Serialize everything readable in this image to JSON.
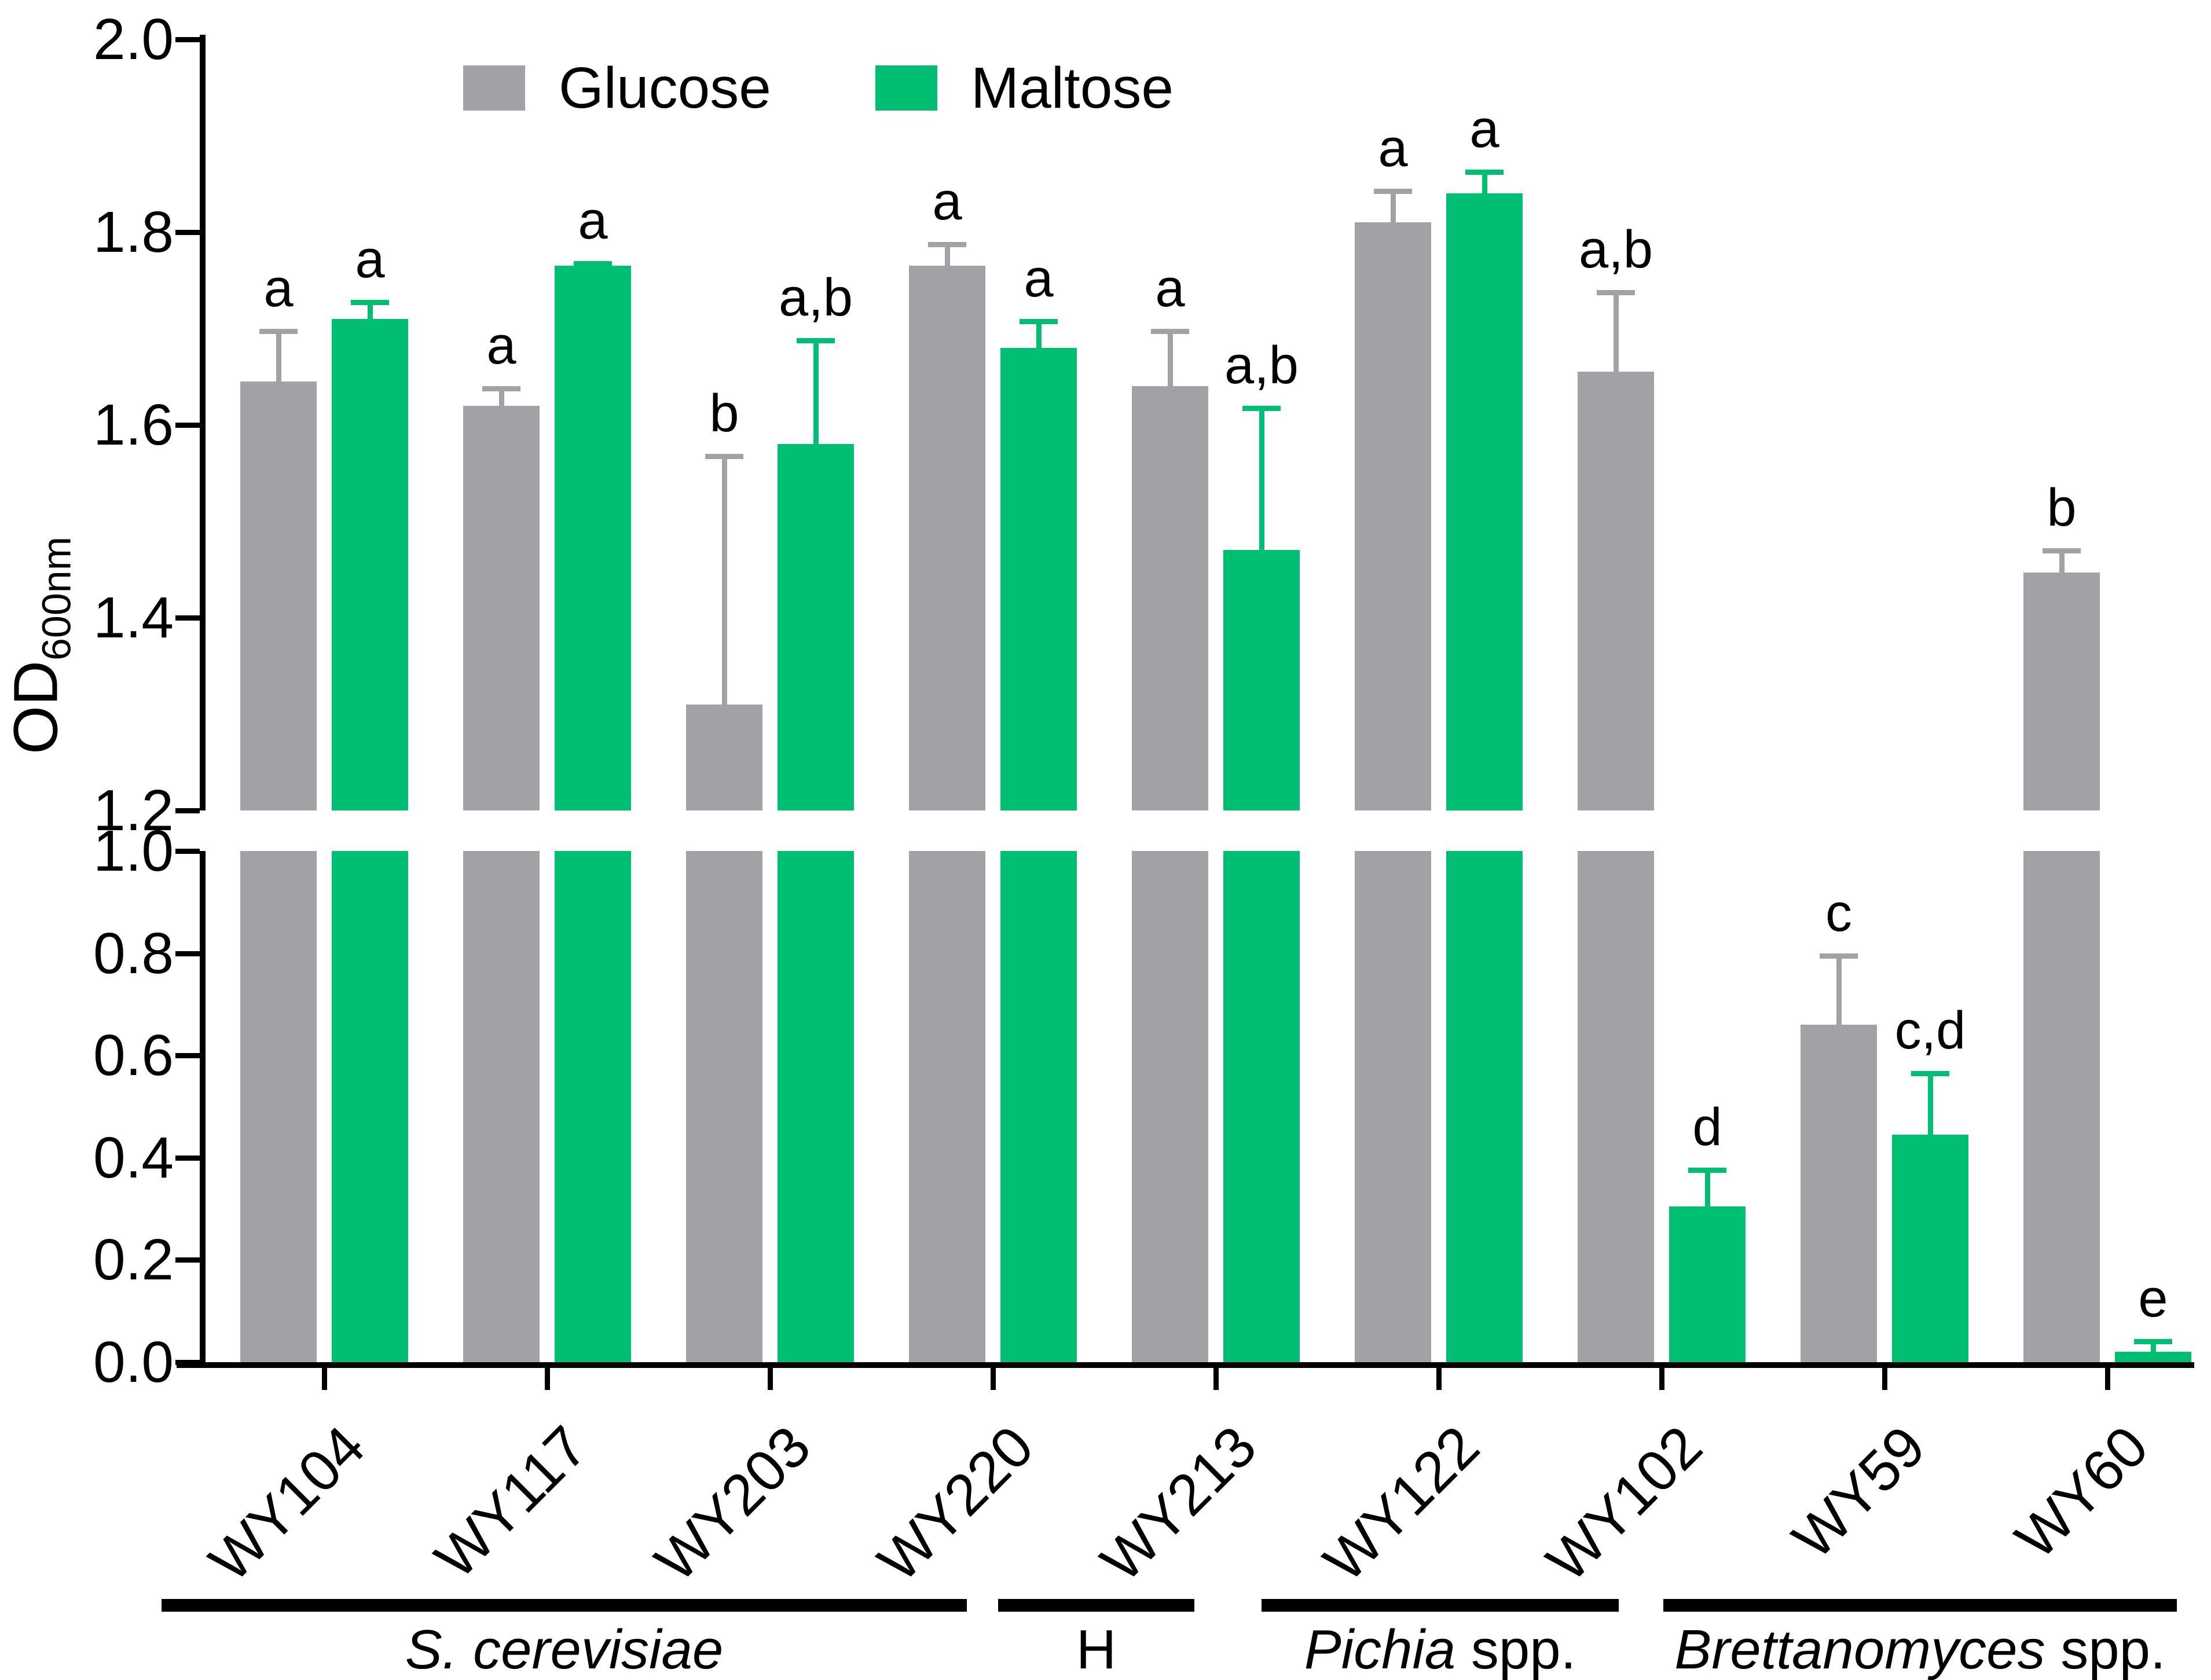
{
  "y_axis": {
    "title_main": "OD",
    "title_sub": "600nm",
    "top_tick_labels": [
      "2.0",
      "1.8",
      "1.6",
      "1.4",
      "1.2"
    ],
    "bottom_tick_labels": [
      "1.0",
      "0.8",
      "0.6",
      "0.4",
      "0.2",
      "0.0"
    ]
  },
  "legend": {
    "items": [
      {
        "label": "Glucose",
        "color": "#A3A0A6"
      },
      {
        "label": "Maltose",
        "color": "#00BE72"
      }
    ]
  },
  "chart_data": {
    "type": "bar",
    "ylabel": "OD600nm",
    "legend_position": "top",
    "grid": false,
    "y_axis_break_between": [
      1.0,
      1.2
    ],
    "top_segment_range": [
      1.2,
      2.0
    ],
    "bottom_segment_range": [
      0.0,
      1.0
    ],
    "categories": [
      "WY104",
      "WY117",
      "WY203",
      "WY220",
      "WY213",
      "WY122",
      "WY102",
      "WY59",
      "WY60"
    ],
    "series": [
      {
        "name": "Glucose",
        "color": "#A3A0A6",
        "values": [
          1.645,
          1.62,
          1.31,
          1.765,
          1.64,
          1.81,
          1.655,
          0.66,
          1.447
        ],
        "error_upper": [
          0.055,
          0.02,
          0.26,
          0.025,
          0.06,
          0.035,
          0.085,
          0.14,
          0.025
        ],
        "sig_letters": [
          "a",
          "a",
          "b",
          "a",
          "a",
          "a",
          "a,b",
          "c",
          "b"
        ]
      },
      {
        "name": "Maltose",
        "color": "#00BE72",
        "values": [
          1.71,
          1.765,
          1.58,
          1.68,
          1.47,
          1.84,
          0.305,
          0.445,
          0.02
        ],
        "error_upper": [
          0.02,
          0.005,
          0.11,
          0.03,
          0.15,
          0.025,
          0.075,
          0.125,
          0.025
        ],
        "sig_letters": [
          "a",
          "a",
          "a,b",
          "a",
          "a,b",
          "a",
          "d",
          "c,d",
          "e"
        ]
      }
    ],
    "groups": [
      {
        "label_italic": "S. cerevisiae",
        "label_roman": "",
        "strains": [
          "WY104",
          "WY117",
          "WY203",
          "WY220"
        ]
      },
      {
        "label_italic": "",
        "label_roman": "H",
        "strains": [
          "WY213"
        ]
      },
      {
        "label_italic": "Pichia",
        "label_roman": " spp.",
        "strains": [
          "WY122",
          "WY102"
        ]
      },
      {
        "label_italic": "Brettanomyces",
        "label_roman": " spp.",
        "strains": [
          "WY59",
          "WY60"
        ]
      }
    ]
  }
}
